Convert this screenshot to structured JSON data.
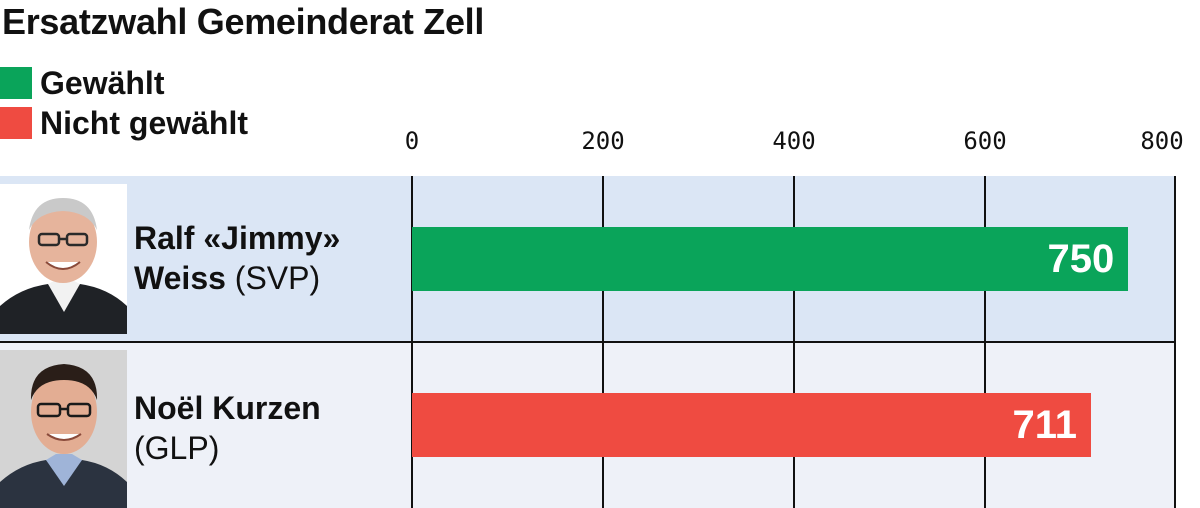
{
  "title": "Ersatzwahl Gemeinderat Zell",
  "legend": [
    {
      "label": "Gewählt",
      "color": "#0aa45a"
    },
    {
      "label": "Nicht gewählt",
      "color": "#ef4b41"
    }
  ],
  "chart_data": {
    "type": "bar",
    "orientation": "horizontal",
    "title": "Ersatzwahl Gemeinderat Zell",
    "xlim": [
      0,
      800
    ],
    "xticks": [
      "0",
      "200",
      "400",
      "600",
      "800"
    ],
    "grid": true,
    "legend_position": "top-left",
    "categories": [
      "Ralf «Jimmy» Weiss (SVP)",
      "Noël Kurzen (GLP)"
    ],
    "values": [
      750,
      711
    ],
    "rows": [
      {
        "name_line1": "Ralf «Jimmy»",
        "name_line2_bold": "Weiss",
        "party": "(SVP)",
        "value": 750,
        "value_label": "750",
        "status": "Gewählt",
        "color": "#0aa45a",
        "row_bg": "#dbe6f5"
      },
      {
        "name_line1": "Noël Kurzen",
        "name_line2_bold": "",
        "party": "(GLP)",
        "value": 711,
        "value_label": "711",
        "status": "Nicht gewählt",
        "color": "#ef4b41",
        "row_bg": "#eef1f8"
      }
    ]
  }
}
